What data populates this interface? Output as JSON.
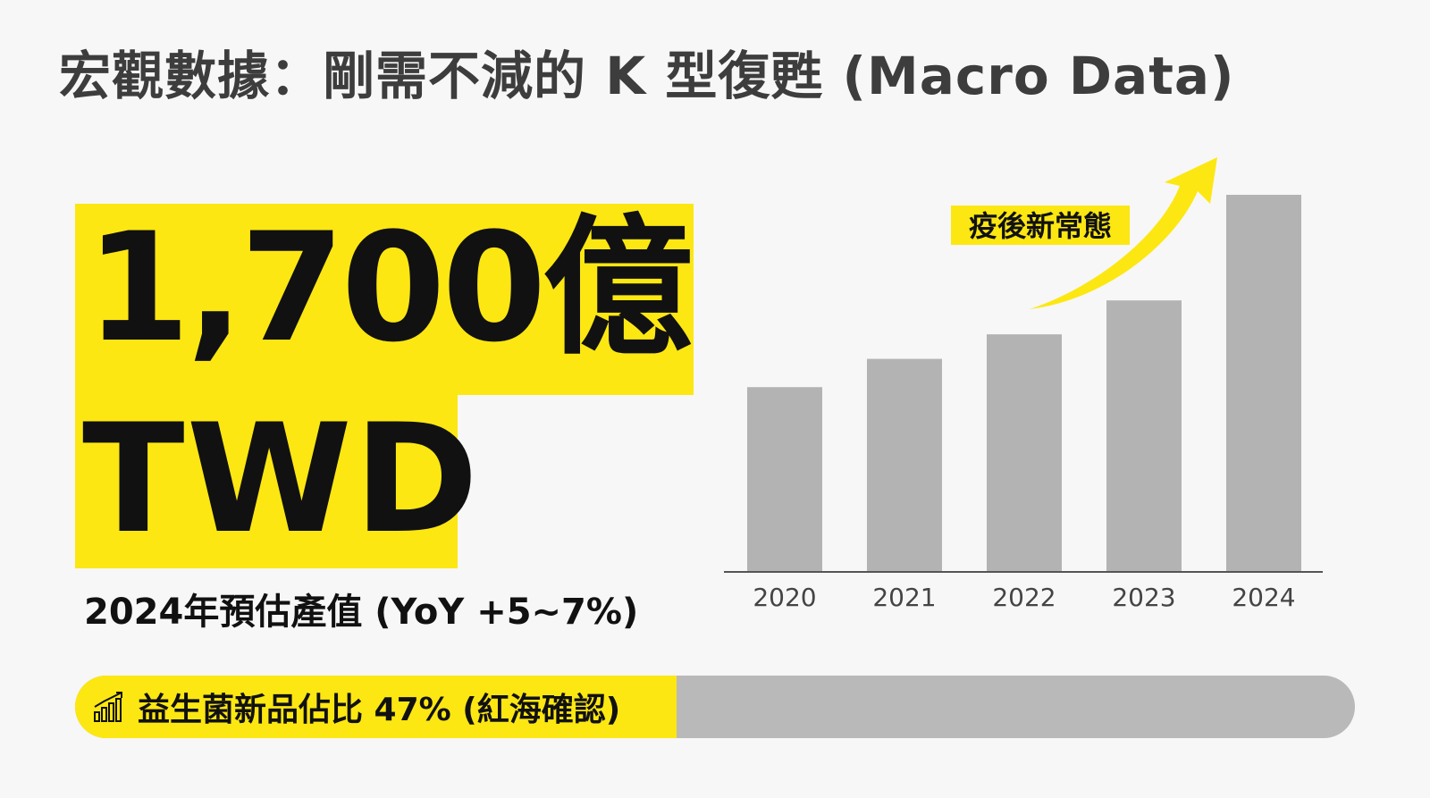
{
  "header": {
    "title": "宏觀數據：剛需不減的 K 型復甦 (Macro Data)"
  },
  "highlight": {
    "value": "1,700億",
    "unit": "TWD",
    "caption": "2024年預估產值 (YoY +5~7%)"
  },
  "progress": {
    "label": "益生菌新品佔比 47% (紅海確認)",
    "percent": 47,
    "icon": "chart-growth-icon"
  },
  "colors": {
    "accent": "#fce712",
    "bar": "#b3b3b3",
    "text": "#111111",
    "title": "#3d3d3d",
    "track": "#b9b9b9"
  },
  "chart_data": {
    "type": "bar",
    "categories": [
      "2020",
      "2021",
      "2022",
      "2023",
      "2024"
    ],
    "values": [
      49,
      56.5,
      63,
      72,
      100
    ],
    "ylim": [
      0,
      100
    ],
    "title": "",
    "xlabel": "",
    "ylabel": "",
    "grid": false,
    "annotation": "疫後新常態",
    "bar_color": "#b3b3b3"
  }
}
